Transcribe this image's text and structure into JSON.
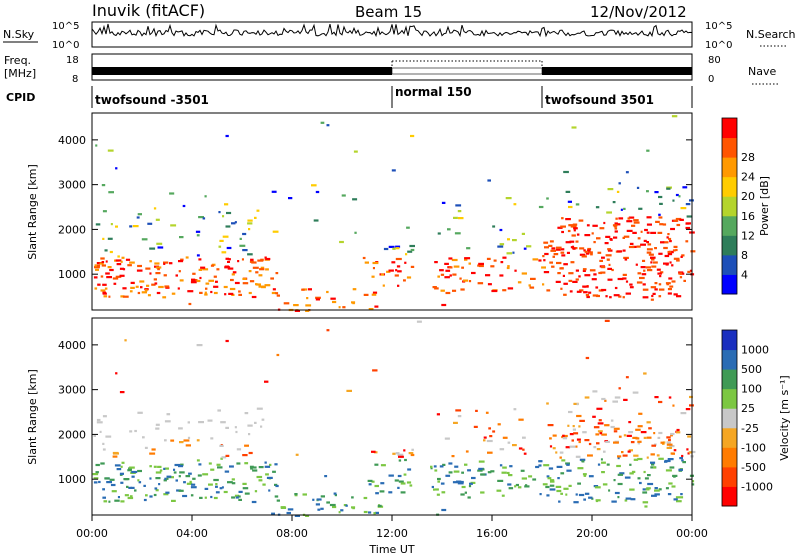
{
  "header": {
    "station": "Inuvik (fitACF)",
    "beam": "Beam 15",
    "date": "12/Nov/2012"
  },
  "colors": {
    "power_scale": [
      "#0000ff",
      "#1d4fb8",
      "#2e7d5a",
      "#55a85e",
      "#b4d42c",
      "#ffcc00",
      "#ff9900",
      "#ff5500",
      "#ff0000"
    ],
    "velocity_scale": [
      "#1a2fbf",
      "#2a6cb4",
      "#3f9a55",
      "#7cc742",
      "#c8c8c8",
      "#f5a623",
      "#ff7b00",
      "#ff4000",
      "#ff0000"
    ]
  },
  "chart_data": [
    {
      "type": "line",
      "name": "noise_panel",
      "left_labels": {
        "top": "N.Sky",
        "ticks": [
          "10^5",
          "10^0"
        ]
      },
      "right_labels": {
        "top": "N.Search",
        "ticks": [
          "10^5",
          "10^0"
        ]
      },
      "x": [
        "00:00",
        "04:00",
        "08:00",
        "12:00",
        "16:00",
        "20:00",
        "00:00"
      ]
    },
    {
      "type": "line",
      "name": "frequency_panel",
      "left_labels": {
        "top": "Freq.",
        "unit": "[MHz]",
        "ticks": [
          "18",
          "8"
        ]
      },
      "right_labels": {
        "top": "Nave",
        "ticks": [
          "80",
          "0"
        ]
      }
    },
    {
      "type": "table",
      "name": "cpid_panel",
      "label": "CPID",
      "segments": [
        {
          "label": "twofsound -3501",
          "start_hour": 0,
          "end_hour": 12
        },
        {
          "label": "normal 150",
          "start_hour": 12,
          "end_hour": 18
        },
        {
          "label": "twofsound 3501",
          "start_hour": 18,
          "end_hour": 24
        }
      ]
    },
    {
      "type": "heatmap",
      "name": "power",
      "ylabel": "Slant Range [km]",
      "yticks": [
        "1000",
        "2000",
        "3000",
        "4000"
      ],
      "ylim": [
        200,
        4600
      ],
      "colorbar_label": "Power [dB]",
      "colorbar_ticks": [
        "4",
        "8",
        "12",
        "16",
        "20",
        "24",
        "28"
      ]
    },
    {
      "type": "heatmap",
      "name": "velocity",
      "ylabel": "Slant Range [km]",
      "yticks": [
        "1000",
        "2000",
        "3000",
        "4000"
      ],
      "ylim": [
        200,
        4600
      ],
      "colorbar_label": "Velocity [m s⁻¹]",
      "colorbar_ticks": [
        "1000",
        "500",
        "100",
        "25",
        "-25",
        "-100",
        "-500",
        "-1000"
      ],
      "xlabel": "Time UT",
      "xticks": [
        "00:00",
        "04:00",
        "08:00",
        "12:00",
        "16:00",
        "20:00",
        "00:00"
      ]
    }
  ]
}
